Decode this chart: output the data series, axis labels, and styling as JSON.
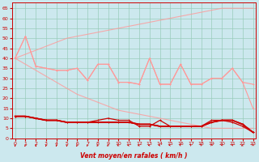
{
  "x": [
    0,
    1,
    2,
    3,
    4,
    5,
    6,
    7,
    8,
    9,
    10,
    11,
    12,
    13,
    14,
    15,
    16,
    17,
    18,
    19,
    20,
    21,
    22,
    23
  ],
  "line_pink1": [
    40,
    51,
    36,
    35,
    34,
    34,
    35,
    29,
    37,
    37,
    28,
    28,
    27,
    40,
    27,
    27,
    37,
    27,
    27,
    30,
    30,
    35,
    28,
    27
  ],
  "line_pink2": [
    40,
    51,
    36,
    35,
    34,
    34,
    35,
    29,
    37,
    37,
    28,
    28,
    27,
    40,
    27,
    27,
    37,
    27,
    27,
    30,
    30,
    35,
    28,
    15
  ],
  "line_env_top": [
    40,
    42,
    44,
    46,
    48,
    50,
    51,
    52,
    53,
    54,
    55,
    56,
    57,
    58,
    59,
    60,
    61,
    62,
    63,
    64,
    65,
    65,
    65,
    65
  ],
  "line_env_bot": [
    40,
    37,
    34,
    31,
    28,
    25,
    22,
    20,
    18,
    16,
    14,
    13,
    12,
    11,
    10,
    9,
    8,
    7,
    6,
    5,
    5,
    5,
    5,
    5
  ],
  "line_red1": [
    11,
    11,
    10,
    9,
    9,
    8,
    8,
    8,
    8,
    8,
    8,
    8,
    7,
    7,
    6,
    6,
    6,
    6,
    6,
    8,
    9,
    9,
    7,
    3
  ],
  "line_red2": [
    11,
    11,
    10,
    9,
    9,
    8,
    8,
    8,
    9,
    10,
    9,
    9,
    6,
    6,
    9,
    6,
    6,
    6,
    6,
    9,
    9,
    8,
    6,
    3
  ],
  "line_red3": [
    11,
    11,
    10,
    9,
    9,
    8,
    8,
    8,
    8,
    8,
    8,
    8,
    7,
    7,
    6,
    6,
    6,
    6,
    6,
    8,
    9,
    9,
    7,
    3
  ],
  "line_red4": [
    11,
    11,
    10,
    9,
    9,
    8,
    8,
    8,
    8,
    8,
    8,
    8,
    7,
    7,
    6,
    6,
    6,
    6,
    6,
    8,
    9,
    9,
    7,
    3
  ],
  "wind_angles": [
    180,
    210,
    180,
    195,
    200,
    190,
    205,
    215,
    225,
    230,
    245,
    255,
    245,
    260,
    270,
    280,
    300,
    315,
    330,
    350,
    10,
    20,
    240,
    0
  ],
  "bg_color": "#cce8ee",
  "grid_color": "#99ccbb",
  "pink": "#ff9999",
  "red": "#cc0000",
  "xlabel": "Vent moyen/en rafales ( km/h )",
  "yticks": [
    0,
    5,
    10,
    15,
    20,
    25,
    30,
    35,
    40,
    45,
    50,
    55,
    60,
    65
  ],
  "ylim": [
    0,
    68
  ],
  "xlim": [
    -0.3,
    23.3
  ]
}
